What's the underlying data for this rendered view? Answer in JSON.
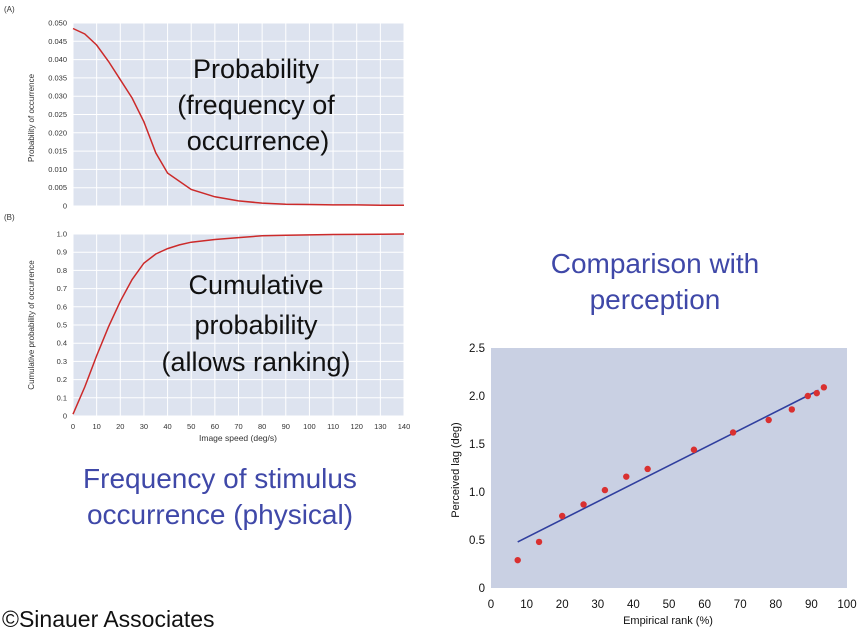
{
  "captions": {
    "frequency": "Frequency of  stimulus occurrence (physical)",
    "comparison": "Comparison with perception"
  },
  "credit": "©Sinauer Associates",
  "colors": {
    "panel_bg": "#dde3ef",
    "curve": "#cc2a2a",
    "fit_line": "#2f3e9e",
    "points": "#d93030",
    "caption": "#3f48a8",
    "scatter_bg": "#c9d0e3"
  },
  "chart_data": [
    {
      "type": "line",
      "panel_label": "(A)",
      "overlay_text": [
        "Probability",
        "(frequency of",
        "occurrence)"
      ],
      "xlabel": "",
      "ylabel": "Probability of occurrence",
      "xlim": [
        0,
        140
      ],
      "ylim": [
        0,
        0.05
      ],
      "x_ticks": [
        0,
        10,
        20,
        30,
        40,
        50,
        60,
        70,
        80,
        90,
        100,
        110,
        120,
        130,
        140
      ],
      "y_ticks": [
        "0",
        "0.005",
        "0.010",
        "0.015",
        "0.020",
        "0.025",
        "0.030",
        "0.035",
        "0.040",
        "0.045",
        "0.050"
      ],
      "grid": true,
      "x": [
        0,
        5,
        10,
        15,
        20,
        25,
        30,
        35,
        40,
        50,
        60,
        70,
        80,
        90,
        100,
        110,
        120,
        130,
        140
      ],
      "y": [
        0.0485,
        0.047,
        0.044,
        0.0395,
        0.0345,
        0.0295,
        0.023,
        0.0145,
        0.009,
        0.0045,
        0.0025,
        0.0014,
        0.0008,
        0.0005,
        0.0004,
        0.0003,
        0.0003,
        0.0002,
        0.0002
      ]
    },
    {
      "type": "line",
      "panel_label": "(B)",
      "overlay_text": [
        "Cumulative",
        "probability",
        "(allows ranking)"
      ],
      "xlabel": "Image speed (deg/s)",
      "ylabel": "Cumulative probability of occurrence",
      "xlim": [
        0,
        140
      ],
      "ylim": [
        0,
        1.0
      ],
      "x_ticks": [
        0,
        10,
        20,
        30,
        40,
        50,
        60,
        70,
        80,
        90,
        100,
        110,
        120,
        130,
        140
      ],
      "y_ticks": [
        "0",
        "0.1",
        "0.2",
        "0.3",
        "0.4",
        "0.5",
        "0.6",
        "0.7",
        "0.8",
        "0.9",
        "1.0"
      ],
      "grid": true,
      "x": [
        0,
        5,
        10,
        15,
        20,
        25,
        30,
        35,
        40,
        45,
        50,
        60,
        70,
        80,
        90,
        100,
        110,
        120,
        130,
        140
      ],
      "y": [
        0.01,
        0.16,
        0.33,
        0.49,
        0.63,
        0.75,
        0.84,
        0.89,
        0.92,
        0.94,
        0.955,
        0.97,
        0.98,
        0.99,
        0.993,
        0.995,
        0.997,
        0.998,
        0.999,
        1.0
      ]
    },
    {
      "type": "scatter",
      "xlabel": "Empirical rank (%)",
      "ylabel": "Perceived lag (deg)",
      "xlim": [
        0,
        100
      ],
      "ylim": [
        0,
        2.5
      ],
      "x_ticks": [
        "0",
        "10",
        "20",
        "30",
        "40",
        "50",
        "60",
        "70",
        "80",
        "90",
        "100"
      ],
      "y_ticks": [
        "0",
        "0.5",
        "1.0",
        "1.5",
        "2.0",
        "2.5"
      ],
      "grid": false,
      "points": [
        {
          "x": 7.5,
          "y": 0.29
        },
        {
          "x": 13.5,
          "y": 0.48
        },
        {
          "x": 20,
          "y": 0.75
        },
        {
          "x": 26,
          "y": 0.87
        },
        {
          "x": 32,
          "y": 1.02
        },
        {
          "x": 38,
          "y": 1.16
        },
        {
          "x": 44,
          "y": 1.24
        },
        {
          "x": 57,
          "y": 1.44
        },
        {
          "x": 68,
          "y": 1.62
        },
        {
          "x": 78,
          "y": 1.75
        },
        {
          "x": 84.5,
          "y": 1.86
        },
        {
          "x": 89,
          "y": 2.0
        },
        {
          "x": 91.5,
          "y": 2.03
        },
        {
          "x": 93.5,
          "y": 2.09
        }
      ],
      "fit_line": [
        {
          "x": 7.5,
          "y": 0.48
        },
        {
          "x": 92,
          "y": 2.06
        }
      ]
    }
  ]
}
